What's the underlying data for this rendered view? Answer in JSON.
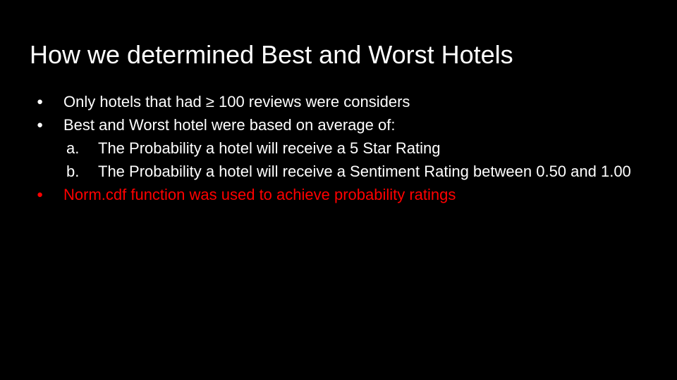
{
  "slide": {
    "title": "How we determined Best and Worst Hotels",
    "accent_color": "#ff0000",
    "items": [
      {
        "marker": "●",
        "text": "Only hotels that had ≥ 100 reviews were considers"
      },
      {
        "marker": "●",
        "text": "Best and Worst hotel were based on average of:"
      },
      {
        "marker": "a.",
        "text": "The Probability a hotel will receive a 5 Star Rating"
      },
      {
        "marker": "b.",
        "text": "The Probability a hotel will receive a Sentiment Rating between 0.50 and 1.00"
      },
      {
        "marker": "●",
        "text": "Norm.cdf function was used to achieve probability ratings"
      }
    ]
  }
}
